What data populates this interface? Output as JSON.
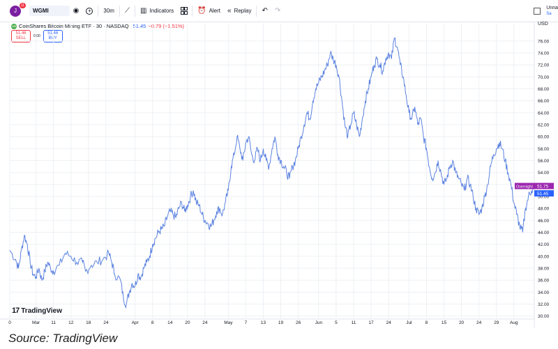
{
  "toolbar": {
    "avatar_letter": "J",
    "avatar_badge": "11",
    "symbol": "WGMI",
    "timeframe": "30m",
    "indicators_label": "Indicators",
    "alert_label": "Alert",
    "replay_label": "Replay",
    "layout_name": "Unna",
    "layout_status": "Sa"
  },
  "legend": {
    "logo_text": "CS",
    "title": "CoinShares Bitcoin Mining ETF · 30 · NASDAQ",
    "values": "51.45",
    "change": "−0.79 (−1.51%)"
  },
  "trade": {
    "sell_price": "51.46",
    "sell_label": "SELL",
    "spread": "0.00",
    "buy_price": "51.46",
    "buy_label": "BUY"
  },
  "branding": {
    "tv_mark": "17",
    "tv_name": "TradingView"
  },
  "source_text": "Source: TradingView",
  "colors": {
    "line": "#5b82e0",
    "overnight": "#9c27b0",
    "last_price": "#2962ff",
    "grid": "#eef0f4"
  },
  "chart_data": {
    "type": "line",
    "currency": "USD",
    "ylim": [
      29.5,
      77.5
    ],
    "y_ticks": [
      30,
      32,
      34,
      36,
      38,
      40,
      42,
      44,
      46,
      48,
      50,
      52,
      54,
      56,
      58,
      60,
      62,
      64,
      66,
      68,
      70,
      72,
      74,
      76
    ],
    "y_tick_labels": [
      "30.00",
      "32.00",
      "34.00",
      "36.00",
      "38.00",
      "40.00",
      "42.00",
      "44.00",
      "46.00",
      "48.00",
      "50.00",
      "52.00",
      "54.00",
      "56.00",
      "58.00",
      "60.00",
      "62.00",
      "64.00",
      "66.00",
      "68.00",
      "70.00",
      "72.00",
      "74.00",
      "76.00"
    ],
    "x_range": [
      0,
      180
    ],
    "x_ticks": [
      {
        "x": 0,
        "label": "0"
      },
      {
        "x": 9,
        "label": "Mar"
      },
      {
        "x": 15,
        "label": "11"
      },
      {
        "x": 21,
        "label": "12"
      },
      {
        "x": 27,
        "label": "18"
      },
      {
        "x": 33,
        "label": "24"
      },
      {
        "x": 43,
        "label": "Apr"
      },
      {
        "x": 49,
        "label": "8"
      },
      {
        "x": 55,
        "label": "14"
      },
      {
        "x": 61,
        "label": "20"
      },
      {
        "x": 67,
        "label": "24"
      },
      {
        "x": 75,
        "label": "May"
      },
      {
        "x": 81,
        "label": "7"
      },
      {
        "x": 87,
        "label": "13"
      },
      {
        "x": 93,
        "label": "19"
      },
      {
        "x": 99,
        "label": "26"
      },
      {
        "x": 106,
        "label": "Jun"
      },
      {
        "x": 112,
        "label": "5"
      },
      {
        "x": 118,
        "label": "11"
      },
      {
        "x": 124,
        "label": "17"
      },
      {
        "x": 130,
        "label": "24"
      },
      {
        "x": 137,
        "label": "Jul"
      },
      {
        "x": 143,
        "label": "8"
      },
      {
        "x": 149,
        "label": "15"
      },
      {
        "x": 155,
        "label": "20"
      },
      {
        "x": 161,
        "label": "24"
      },
      {
        "x": 167,
        "label": "29"
      },
      {
        "x": 173,
        "label": "Aug"
      }
    ],
    "series": [
      {
        "keypoints": [
          [
            0,
            41
          ],
          [
            2,
            39.5
          ],
          [
            3,
            38
          ],
          [
            4,
            41
          ],
          [
            5,
            43.5
          ],
          [
            6,
            42
          ],
          [
            7,
            39
          ],
          [
            8,
            37
          ],
          [
            9,
            36.5
          ],
          [
            10,
            38
          ],
          [
            11,
            36
          ],
          [
            12,
            37.5
          ],
          [
            13,
            39
          ],
          [
            14,
            38
          ],
          [
            15,
            37.5
          ],
          [
            17,
            38.5
          ],
          [
            19,
            40.5
          ],
          [
            21,
            40
          ],
          [
            23,
            39
          ],
          [
            25,
            39
          ],
          [
            26,
            37.5
          ],
          [
            28,
            38.5
          ],
          [
            30,
            39
          ],
          [
            32,
            39.5
          ],
          [
            34,
            40.5
          ],
          [
            35,
            39
          ],
          [
            36,
            37
          ],
          [
            38,
            36
          ],
          [
            39,
            33
          ],
          [
            40,
            32
          ],
          [
            41,
            34
          ],
          [
            42,
            35.5
          ],
          [
            43,
            35
          ],
          [
            44,
            37
          ],
          [
            45,
            36.5
          ],
          [
            46,
            38
          ],
          [
            47,
            39
          ],
          [
            48,
            40
          ],
          [
            49,
            42
          ],
          [
            50,
            43
          ],
          [
            51,
            44
          ],
          [
            52,
            44.5
          ],
          [
            53,
            45
          ],
          [
            54,
            46.5
          ],
          [
            55,
            47.5
          ],
          [
            56,
            47
          ],
          [
            57,
            46.5
          ],
          [
            58,
            48
          ],
          [
            59,
            49
          ],
          [
            60,
            47.5
          ],
          [
            61,
            48.5
          ],
          [
            62,
            50
          ],
          [
            63,
            51
          ],
          [
            64,
            49
          ],
          [
            65,
            48.5
          ],
          [
            66,
            47
          ],
          [
            67,
            46
          ],
          [
            68,
            45.5
          ],
          [
            69,
            45
          ],
          [
            70,
            46
          ],
          [
            71,
            47.5
          ],
          [
            72,
            48
          ],
          [
            73,
            47
          ],
          [
            74,
            49
          ],
          [
            75,
            51
          ],
          [
            76,
            55
          ],
          [
            77,
            57
          ],
          [
            78,
            60
          ],
          [
            79,
            58
          ],
          [
            80,
            56
          ],
          [
            81,
            59
          ],
          [
            82,
            60
          ],
          [
            83,
            57
          ],
          [
            84,
            56
          ],
          [
            85,
            58
          ],
          [
            86,
            56
          ],
          [
            87,
            58
          ],
          [
            88,
            56
          ],
          [
            89,
            55
          ],
          [
            90,
            58
          ],
          [
            91,
            60
          ],
          [
            92,
            57
          ],
          [
            93,
            56
          ],
          [
            94,
            55
          ],
          [
            95,
            54
          ],
          [
            96,
            53
          ],
          [
            97,
            55
          ],
          [
            98,
            56
          ],
          [
            99,
            58
          ],
          [
            100,
            60
          ],
          [
            101,
            62
          ],
          [
            102,
            64
          ],
          [
            103,
            63
          ],
          [
            104,
            66
          ],
          [
            105,
            68
          ],
          [
            106,
            69
          ],
          [
            107,
            70
          ],
          [
            108,
            71
          ],
          [
            109,
            72
          ],
          [
            110,
            74
          ],
          [
            111,
            73
          ],
          [
            112,
            72
          ],
          [
            113,
            70
          ],
          [
            114,
            66
          ],
          [
            115,
            62
          ],
          [
            116,
            60
          ],
          [
            117,
            62
          ],
          [
            118,
            64
          ],
          [
            119,
            62
          ],
          [
            120,
            60
          ],
          [
            121,
            63
          ],
          [
            122,
            66
          ],
          [
            123,
            68
          ],
          [
            124,
            70
          ],
          [
            125,
            72
          ],
          [
            126,
            73
          ],
          [
            127,
            72
          ],
          [
            128,
            71
          ],
          [
            129,
            73
          ],
          [
            130,
            74
          ],
          [
            131,
            73
          ],
          [
            132,
            76.5
          ],
          [
            133,
            75
          ],
          [
            134,
            72
          ],
          [
            135,
            70
          ],
          [
            136,
            67
          ],
          [
            137,
            64
          ],
          [
            138,
            63
          ],
          [
            139,
            65
          ],
          [
            140,
            62
          ],
          [
            141,
            63
          ],
          [
            142,
            60
          ],
          [
            143,
            58
          ],
          [
            144,
            55
          ],
          [
            145,
            53
          ],
          [
            146,
            54
          ],
          [
            147,
            56
          ],
          [
            148,
            54
          ],
          [
            149,
            52
          ],
          [
            150,
            53
          ],
          [
            151,
            55
          ],
          [
            152,
            56
          ],
          [
            153,
            54
          ],
          [
            154,
            53
          ],
          [
            155,
            52
          ],
          [
            156,
            51
          ],
          [
            157,
            53
          ],
          [
            158,
            52
          ],
          [
            159,
            50
          ],
          [
            160,
            48
          ],
          [
            161,
            47
          ],
          [
            162,
            48
          ],
          [
            163,
            50
          ],
          [
            164,
            52
          ],
          [
            165,
            55
          ],
          [
            166,
            57
          ],
          [
            167,
            58
          ],
          [
            168,
            59
          ],
          [
            169,
            58
          ],
          [
            170,
            56
          ],
          [
            171,
            54
          ],
          [
            172,
            52
          ],
          [
            173,
            49
          ],
          [
            174,
            47
          ],
          [
            175,
            45
          ],
          [
            176,
            44
          ],
          [
            177,
            48
          ],
          [
            178,
            50
          ],
          [
            179,
            51
          ],
          [
            180,
            51.45
          ]
        ]
      }
    ],
    "last_price": 51.45,
    "overnight_label": "Overnight",
    "overnight_price": 51.75
  }
}
